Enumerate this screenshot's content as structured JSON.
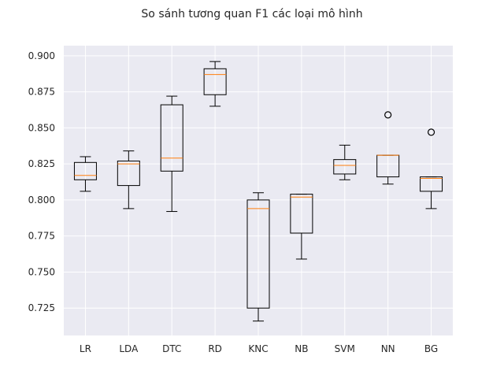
{
  "chart_data": {
    "type": "boxplot",
    "title": "So sánh tương quan F1 các loại mô hình",
    "xlabel": "",
    "ylabel": "",
    "grid": true,
    "ylim": [
      0.706,
      0.907
    ],
    "yticks": [
      0.725,
      0.75,
      0.775,
      0.8,
      0.825,
      0.85,
      0.875,
      0.9
    ],
    "ytick_labels": [
      "0.725",
      "0.750",
      "0.775",
      "0.800",
      "0.825",
      "0.850",
      "0.875",
      "0.900"
    ],
    "categories": [
      "LR",
      "LDA",
      "DTC",
      "RD",
      "KNC",
      "NB",
      "SVM",
      "NN",
      "BG"
    ],
    "boxes": [
      {
        "label": "LR",
        "whisker_low": 0.806,
        "q1": 0.814,
        "median": 0.817,
        "q3": 0.826,
        "whisker_high": 0.83,
        "outliers": []
      },
      {
        "label": "LDA",
        "whisker_low": 0.794,
        "q1": 0.81,
        "median": 0.825,
        "q3": 0.827,
        "whisker_high": 0.834,
        "outliers": []
      },
      {
        "label": "DTC",
        "whisker_low": 0.792,
        "q1": 0.82,
        "median": 0.829,
        "q3": 0.866,
        "whisker_high": 0.872,
        "outliers": []
      },
      {
        "label": "RD",
        "whisker_low": 0.865,
        "q1": 0.873,
        "median": 0.887,
        "q3": 0.891,
        "whisker_high": 0.896,
        "outliers": []
      },
      {
        "label": "KNC",
        "whisker_low": 0.716,
        "q1": 0.725,
        "median": 0.794,
        "q3": 0.8,
        "whisker_high": 0.805,
        "outliers": []
      },
      {
        "label": "NB",
        "whisker_low": 0.759,
        "q1": 0.777,
        "median": 0.802,
        "q3": 0.804,
        "whisker_high": 0.804,
        "outliers": []
      },
      {
        "label": "SVM",
        "whisker_low": 0.814,
        "q1": 0.818,
        "median": 0.824,
        "q3": 0.828,
        "whisker_high": 0.838,
        "outliers": []
      },
      {
        "label": "NN",
        "whisker_low": 0.811,
        "q1": 0.816,
        "median": 0.831,
        "q3": 0.831,
        "whisker_high": 0.831,
        "outliers": [
          0.859
        ]
      },
      {
        "label": "BG",
        "whisker_low": 0.794,
        "q1": 0.806,
        "median": 0.815,
        "q3": 0.816,
        "whisker_high": 0.816,
        "outliers": [
          0.847
        ]
      }
    ],
    "colors": {
      "plot_background": "#eaeaf2",
      "grid": "#ffffff",
      "box": "#000000",
      "median": "#ff7f0e",
      "text": "#262626"
    }
  }
}
